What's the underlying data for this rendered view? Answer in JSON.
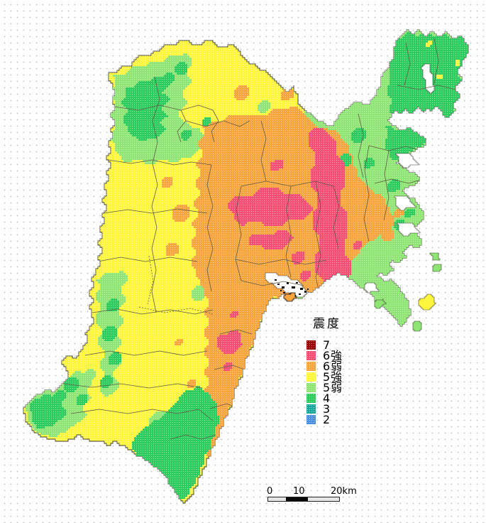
{
  "legend": {
    "title": "震度",
    "items": [
      {
        "key": "7",
        "label": "7",
        "color": "#980000"
      },
      {
        "key": "6s",
        "label": "6強",
        "color": "#FA4D73"
      },
      {
        "key": "6w",
        "label": "6弱",
        "color": "#FAA43C"
      },
      {
        "key": "5s",
        "label": "5強",
        "color": "#FFF53C"
      },
      {
        "key": "5w",
        "label": "5弱",
        "color": "#8FE573"
      },
      {
        "key": "4",
        "label": "4",
        "color": "#2BCB5C"
      },
      {
        "key": "3",
        "label": "3",
        "color": "#17A79B"
      },
      {
        "key": "2",
        "label": "2",
        "color": "#4A90DF"
      }
    ]
  },
  "scale_bar": {
    "labels": [
      "0",
      "10",
      "20km"
    ]
  },
  "map": {
    "description": "震度 distribution map of Miyagi Prefecture",
    "base_intensity": "5s",
    "boundary_color": "#5E5B45",
    "coast_color": "#3d3d33",
    "island_speck_color": "#111111",
    "water_color": "#ffffff",
    "background_dot_color": "#c9c9c9"
  }
}
